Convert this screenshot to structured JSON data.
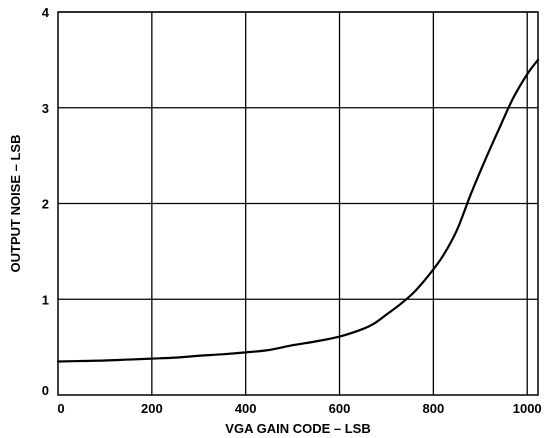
{
  "chart_data": {
    "type": "line",
    "title": "",
    "xlabel": "VGA GAIN CODE – LSB",
    "ylabel": "OUTPUT NOISE – LSB",
    "xlim": [
      0,
      1023
    ],
    "ylim": [
      0,
      4
    ],
    "xticks": [
      0,
      200,
      400,
      600,
      800,
      1000
    ],
    "yticks": [
      0,
      1,
      2,
      3,
      4
    ],
    "grid": true,
    "legend": "none",
    "series": [
      {
        "color": "#000000",
        "x": [
          0,
          50,
          100,
          150,
          200,
          250,
          300,
          350,
          400,
          450,
          500,
          550,
          600,
          650,
          675,
          700,
          730,
          760,
          790,
          820,
          850,
          880,
          910,
          940,
          970,
          1000,
          1023
        ],
        "y": [
          0.35,
          0.355,
          0.36,
          0.37,
          0.38,
          0.39,
          0.41,
          0.425,
          0.445,
          0.47,
          0.52,
          0.56,
          0.61,
          0.69,
          0.75,
          0.84,
          0.95,
          1.08,
          1.25,
          1.45,
          1.72,
          2.1,
          2.45,
          2.78,
          3.1,
          3.35,
          3.5
        ]
      }
    ]
  }
}
